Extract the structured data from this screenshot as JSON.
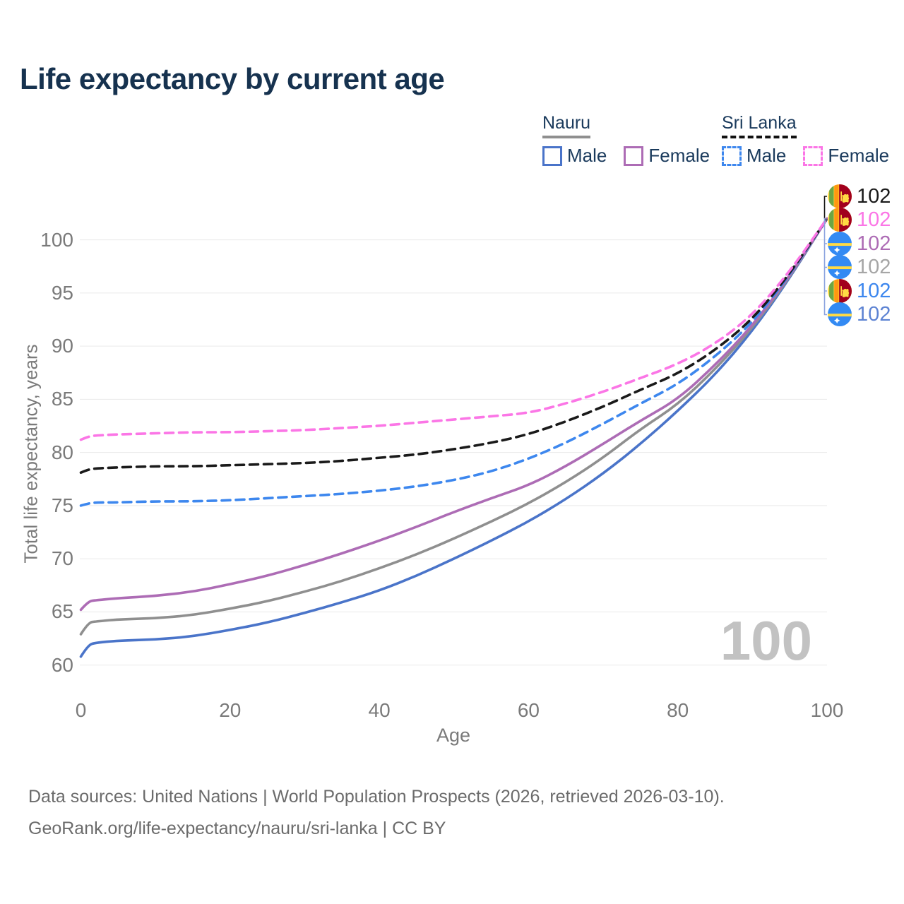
{
  "title": "Life expectancy by current age",
  "legend": {
    "groups": [
      {
        "name": "Nauru",
        "line_style": "solid",
        "line_color": "#8f8f8f",
        "items": [
          {
            "label": "Male",
            "color": "#4a74c9"
          },
          {
            "label": "Female",
            "color": "#ad6cb5"
          }
        ]
      },
      {
        "name": "Sri Lanka",
        "line_style": "dashed",
        "line_color": "#111111",
        "items": [
          {
            "label": "Male",
            "color": "#3d87ee"
          },
          {
            "label": "Female",
            "color": "#fb76e6"
          }
        ]
      }
    ]
  },
  "chart_data": {
    "type": "line",
    "title": "Life expectancy by current age",
    "xlabel": "Age",
    "ylabel": "Total life expectancy, years",
    "xlim": [
      0,
      100
    ],
    "ylim": [
      60,
      100
    ],
    "xticks": [
      0,
      20,
      40,
      60,
      80,
      100
    ],
    "yticks": [
      60,
      65,
      70,
      75,
      80,
      85,
      90,
      95,
      100
    ],
    "grid": "horizontal",
    "legend_position": "top-right",
    "x": [
      0,
      1,
      2,
      5,
      10,
      15,
      20,
      25,
      30,
      35,
      40,
      45,
      50,
      55,
      60,
      65,
      70,
      75,
      80,
      85,
      90,
      95,
      100
    ],
    "series": [
      {
        "name": "Nauru Male",
        "country": "Nauru",
        "sex": "Male",
        "color": "#4a74c9",
        "dashed": false,
        "values": [
          60.8,
          61.9,
          62.1,
          62.3,
          62.4,
          62.7,
          63.3,
          64.0,
          64.9,
          65.9,
          67.0,
          68.4,
          70.0,
          71.7,
          73.5,
          75.6,
          78.0,
          80.8,
          83.9,
          87.3,
          91.4,
          96.4,
          102
        ]
      },
      {
        "name": "Nauru Total",
        "country": "Nauru",
        "sex": "Both",
        "color": "#8f8f8f",
        "dashed": false,
        "values": [
          62.9,
          64.0,
          64.1,
          64.3,
          64.4,
          64.7,
          65.3,
          66.0,
          66.9,
          67.9,
          69.1,
          70.4,
          71.9,
          73.5,
          75.2,
          77.2,
          79.5,
          82.2,
          84.5,
          87.8,
          91.7,
          96.5,
          102
        ]
      },
      {
        "name": "Nauru Female",
        "country": "Nauru",
        "sex": "Female",
        "color": "#ad6cb5",
        "dashed": false,
        "values": [
          65.2,
          66.0,
          66.1,
          66.3,
          66.5,
          66.9,
          67.6,
          68.4,
          69.4,
          70.5,
          71.7,
          73.0,
          74.4,
          75.7,
          76.9,
          78.7,
          80.8,
          83.0,
          85.0,
          88.2,
          91.9,
          96.6,
          102
        ]
      },
      {
        "name": "Sri Lanka Male",
        "country": "Sri Lanka",
        "sex": "Male",
        "color": "#3d87ee",
        "dashed": true,
        "values": [
          75.0,
          75.2,
          75.3,
          75.3,
          75.4,
          75.4,
          75.5,
          75.7,
          75.9,
          76.1,
          76.4,
          76.8,
          77.4,
          78.2,
          79.4,
          80.9,
          82.7,
          84.6,
          86.4,
          89.0,
          92.2,
          96.7,
          102
        ]
      },
      {
        "name": "Sri Lanka Total",
        "country": "Sri Lanka",
        "sex": "Both",
        "color": "#1a1a1a",
        "dashed": true,
        "values": [
          78.1,
          78.4,
          78.5,
          78.6,
          78.7,
          78.7,
          78.8,
          78.9,
          79.0,
          79.2,
          79.5,
          79.8,
          80.3,
          80.9,
          81.7,
          82.9,
          84.3,
          85.9,
          87.4,
          89.6,
          92.5,
          96.8,
          102
        ]
      },
      {
        "name": "Sri Lanka Female",
        "country": "Sri Lanka",
        "sex": "Female",
        "color": "#fb76e6",
        "dashed": true,
        "values": [
          81.2,
          81.5,
          81.6,
          81.7,
          81.8,
          81.9,
          81.9,
          82.0,
          82.1,
          82.3,
          82.5,
          82.8,
          83.1,
          83.4,
          83.7,
          84.6,
          85.7,
          87.0,
          88.3,
          90.2,
          92.9,
          97.0,
          102
        ]
      }
    ],
    "end_labels": [
      {
        "value": "102",
        "color": "#1a1a1a",
        "flag": "sri-lanka",
        "series": "Sri Lanka Total"
      },
      {
        "value": "102",
        "color": "#fb76e6",
        "flag": "sri-lanka",
        "series": "Sri Lanka Female"
      },
      {
        "value": "102",
        "color": "#ad6cb5",
        "flag": "nauru",
        "series": "Nauru Female"
      },
      {
        "value": "102",
        "color": "#a6a6a6",
        "flag": "nauru",
        "series": "Nauru Total"
      },
      {
        "value": "102",
        "color": "#3d87ee",
        "flag": "sri-lanka",
        "series": "Sri Lanka Male"
      },
      {
        "value": "102",
        "color": "#5d83d3",
        "flag": "nauru",
        "series": "Nauru Male"
      }
    ],
    "watermark": "100"
  },
  "footer": {
    "line1": "Data sources: United Nations | World Population Prospects (2026, retrieved 2026-03-10).",
    "line2": "GeoRank.org/life-expectancy/nauru/sri-lanka | CC BY"
  }
}
